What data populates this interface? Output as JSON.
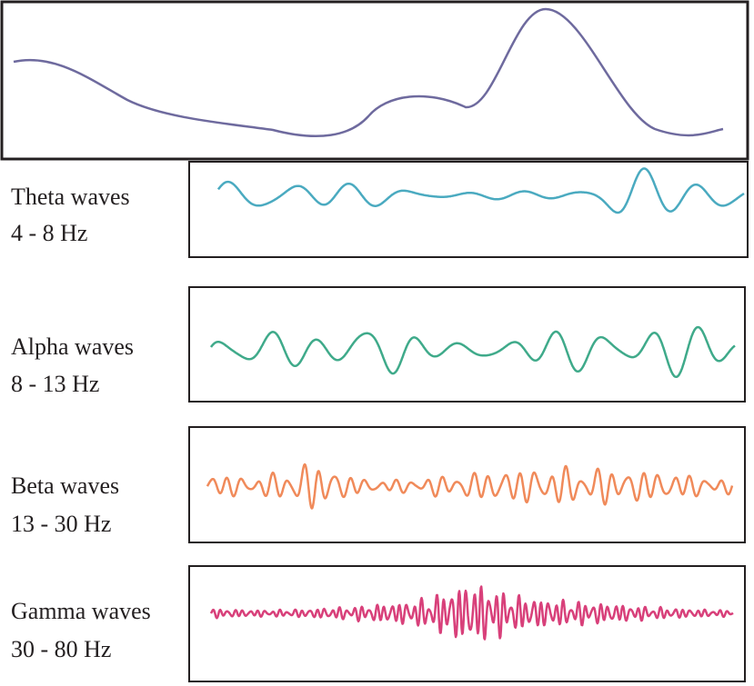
{
  "panels": [
    {
      "name": "Theta waves",
      "range": "4 - 8 Hz"
    },
    {
      "name": "Alpha waves",
      "range": "8 - 13 Hz"
    },
    {
      "name": "Beta waves",
      "range": "13 - 30 Hz"
    },
    {
      "name": "Gamma waves",
      "range": "30 - 80 Hz"
    }
  ]
}
